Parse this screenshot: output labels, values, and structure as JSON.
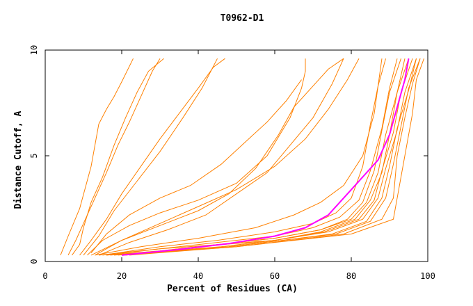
{
  "chart_data": {
    "type": "line",
    "title": "T0962-D1",
    "xlabel": "Percent of Residues (CA)",
    "ylabel": "Distance Cutoff, A",
    "xlim": [
      0,
      100
    ],
    "ylim": [
      0,
      10
    ],
    "x_ticks": [
      "0",
      "20",
      "40",
      "60",
      "80",
      "100"
    ],
    "y_ticks": [
      "0",
      "5",
      "10"
    ],
    "grid": false,
    "legend": "none",
    "colors": {
      "series": "#ff8000",
      "highlight": "#ff00ff",
      "axis": "#000000"
    },
    "series": [
      {
        "x": [
          4,
          6,
          9,
          12,
          14,
          16,
          18,
          20,
          23
        ],
        "y": [
          0.3,
          1.2,
          2.5,
          4.5,
          6.5,
          7.2,
          7.8,
          8.5,
          9.6
        ]
      },
      {
        "x": [
          7,
          9,
          10,
          12,
          15,
          18,
          21,
          24,
          27,
          31
        ],
        "y": [
          0.3,
          0.8,
          1.6,
          2.8,
          4.0,
          5.5,
          6.8,
          8.0,
          9.0,
          9.6
        ]
      },
      {
        "x": [
          6,
          8,
          10,
          13,
          16,
          19,
          22,
          25,
          28,
          30
        ],
        "y": [
          0.3,
          1.0,
          1.8,
          3.0,
          4.2,
          5.5,
          6.6,
          7.8,
          9.0,
          9.6
        ]
      },
      {
        "x": [
          9,
          12,
          16,
          20,
          25,
          30,
          35,
          40,
          44,
          47
        ],
        "y": [
          0.3,
          1.0,
          2.0,
          3.2,
          4.5,
          5.8,
          7.0,
          8.2,
          9.2,
          9.6
        ]
      },
      {
        "x": [
          10,
          14,
          18,
          24,
          30,
          36,
          41,
          45
        ],
        "y": [
          0.3,
          1.2,
          2.4,
          3.8,
          5.2,
          6.8,
          8.2,
          9.6
        ]
      },
      {
        "x": [
          12,
          16,
          22,
          30,
          38,
          46,
          52,
          58,
          63,
          67
        ],
        "y": [
          0.4,
          1.3,
          2.2,
          3.0,
          3.6,
          4.6,
          5.6,
          6.6,
          7.6,
          8.6
        ]
      },
      {
        "x": [
          11,
          15,
          22,
          30,
          40,
          50,
          58,
          64,
          67,
          68,
          68
        ],
        "y": [
          0.3,
          1.0,
          1.7,
          2.3,
          2.9,
          3.7,
          5.0,
          6.8,
          8.2,
          9.0,
          9.6
        ]
      },
      {
        "x": [
          13,
          20,
          30,
          40,
          48,
          55,
          61,
          65,
          70,
          74,
          78
        ],
        "y": [
          0.3,
          1.0,
          1.7,
          2.4,
          3.2,
          4.4,
          6.0,
          7.3,
          8.3,
          9.1,
          9.6
        ]
      },
      {
        "x": [
          12,
          20,
          30,
          40,
          50,
          60,
          68,
          74,
          79,
          82
        ],
        "y": [
          0.3,
          1.0,
          1.8,
          2.6,
          3.4,
          4.5,
          5.8,
          7.2,
          8.6,
          9.6
        ]
      },
      {
        "x": [
          14,
          22,
          32,
          42,
          50,
          58,
          64,
          70,
          75,
          78
        ],
        "y": [
          0.3,
          0.9,
          1.5,
          2.2,
          3.2,
          4.2,
          5.5,
          6.8,
          8.4,
          9.6
        ]
      },
      {
        "x": [
          13,
          25,
          40,
          55,
          65,
          72,
          78,
          83,
          86,
          88
        ],
        "y": [
          0.3,
          0.7,
          1.1,
          1.6,
          2.2,
          2.8,
          3.6,
          5.0,
          7.0,
          9.6
        ]
      },
      {
        "x": [
          15,
          30,
          45,
          60,
          70,
          76,
          80,
          83,
          85,
          87,
          89
        ],
        "y": [
          0.3,
          0.7,
          1.0,
          1.4,
          1.8,
          2.3,
          3.0,
          4.5,
          6.5,
          8.3,
          9.6
        ]
      },
      {
        "x": [
          14,
          30,
          45,
          60,
          70,
          77,
          82,
          85,
          88,
          90,
          92
        ],
        "y": [
          0.3,
          0.6,
          0.9,
          1.2,
          1.6,
          2.1,
          2.9,
          4.3,
          6.3,
          8.2,
          9.6
        ]
      },
      {
        "x": [
          16,
          30,
          45,
          60,
          72,
          79,
          83,
          86,
          88,
          90,
          93
        ],
        "y": [
          0.3,
          0.6,
          0.8,
          1.1,
          1.5,
          2.0,
          2.8,
          4.3,
          6.2,
          8.0,
          9.6
        ]
      },
      {
        "x": [
          16,
          30,
          45,
          60,
          72,
          80,
          84,
          87,
          89,
          92,
          94
        ],
        "y": [
          0.3,
          0.5,
          0.8,
          1.1,
          1.5,
          2.0,
          2.8,
          4.2,
          6.0,
          8.0,
          9.6
        ]
      },
      {
        "x": [
          17,
          30,
          45,
          60,
          72,
          81,
          85,
          88,
          90,
          92,
          95
        ],
        "y": [
          0.3,
          0.5,
          0.8,
          1.0,
          1.4,
          2.0,
          2.9,
          4.2,
          6.0,
          8.0,
          9.6
        ]
      },
      {
        "x": [
          18,
          32,
          46,
          60,
          73,
          82,
          86,
          88,
          91,
          93,
          96
        ],
        "y": [
          0.3,
          0.5,
          0.8,
          1.0,
          1.4,
          2.0,
          2.9,
          4.3,
          6.1,
          8.0,
          9.6
        ]
      },
      {
        "x": [
          19,
          32,
          46,
          60,
          74,
          83,
          87,
          89,
          92,
          94,
          97
        ],
        "y": [
          0.3,
          0.5,
          0.7,
          1.0,
          1.4,
          2.0,
          3.0,
          4.4,
          6.2,
          8.0,
          9.6
        ]
      },
      {
        "x": [
          20,
          34,
          48,
          62,
          75,
          84,
          88,
          90,
          92,
          95,
          97
        ],
        "y": [
          0.3,
          0.5,
          0.7,
          1.0,
          1.3,
          1.9,
          3.0,
          4.5,
          6.3,
          8.1,
          9.6
        ]
      },
      {
        "x": [
          20,
          34,
          48,
          62,
          76,
          85,
          89,
          91,
          93,
          95,
          98
        ],
        "y": [
          0.3,
          0.5,
          0.7,
          1.0,
          1.3,
          1.9,
          3.0,
          4.6,
          6.4,
          8.2,
          9.6
        ]
      },
      {
        "x": [
          21,
          35,
          50,
          64,
          78,
          88,
          91,
          92,
          94,
          96,
          98
        ],
        "y": [
          0.3,
          0.5,
          0.7,
          1.0,
          1.3,
          2.0,
          3.0,
          5.0,
          6.8,
          8.4,
          9.6
        ]
      },
      {
        "x": [
          22,
          36,
          50,
          65,
          80,
          91,
          92,
          94,
          96,
          97,
          99
        ],
        "y": [
          0.3,
          0.5,
          0.7,
          1.0,
          1.3,
          2.0,
          3.0,
          5.0,
          7.0,
          8.6,
          9.6
        ]
      },
      {
        "x": [
          20,
          34,
          48,
          60,
          68,
          74,
          78,
          83,
          87,
          90,
          92,
          94,
          95
        ],
        "y": [
          0.3,
          0.55,
          0.85,
          1.2,
          1.6,
          2.2,
          3.0,
          4.0,
          4.8,
          6.0,
          7.3,
          8.6,
          9.6
        ],
        "highlight": true
      }
    ]
  }
}
